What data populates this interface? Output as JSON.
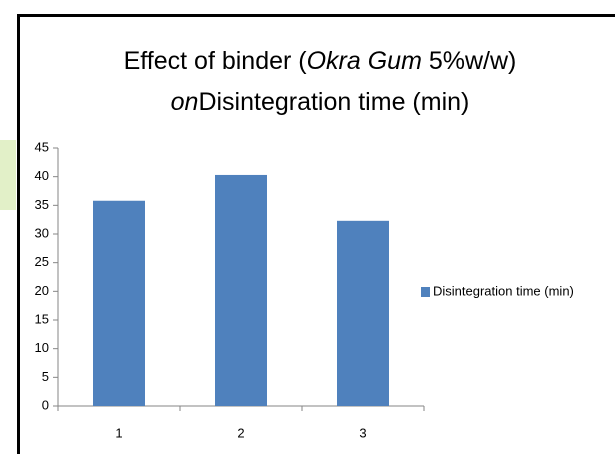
{
  "chart_data": {
    "type": "bar",
    "title": [
      [
        {
          "text": "Effect  of binder ("
        },
        {
          "text": "Okra Gum",
          "italic": true
        },
        {
          "text": " 5%w/w)"
        }
      ],
      [
        {
          "text": "on",
          "italic": true
        },
        {
          "text": "Disintegration time (min)"
        }
      ]
    ],
    "categories": [
      "1",
      "2",
      "3"
    ],
    "series": [
      {
        "name": "Disintegration time (min)",
        "color": "#4f81bd",
        "values": [
          35.8,
          40.3,
          32.3
        ]
      }
    ],
    "ylim": [
      0,
      45
    ],
    "yticks": [
      0,
      5,
      10,
      15,
      20,
      25,
      30,
      35,
      40,
      45
    ],
    "grid": false,
    "legend": "right"
  }
}
